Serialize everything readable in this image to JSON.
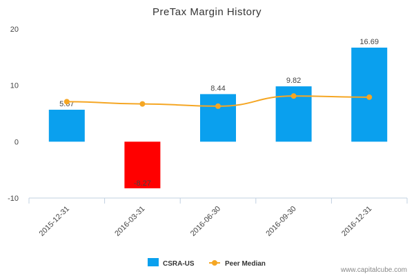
{
  "credit": "www.capitalcube.com",
  "chart_data": {
    "type": "bar",
    "title": "PreTax Margin History",
    "categories": [
      "2015-12-31",
      "2016-03-31",
      "2016-06-30",
      "2016-09-30",
      "2016-12-31"
    ],
    "ylim": [
      -10,
      20
    ],
    "yticks": [
      -10,
      0,
      10,
      20
    ],
    "series": [
      {
        "name": "CSRA-US",
        "kind": "bar",
        "values": [
          5.67,
          -8.27,
          8.44,
          9.82,
          16.69
        ],
        "labels": [
          "5.67",
          "-8.27",
          "8.44",
          "9.82",
          "16.69"
        ],
        "color": "#0aa0ee",
        "negative_color": "#ff0000"
      },
      {
        "name": "Peer Median",
        "kind": "line",
        "values": [
          7.1,
          6.7,
          6.3,
          8.1,
          7.9
        ],
        "color": "#f5a623"
      }
    ],
    "legend_position": "bottom-center",
    "grid": false
  }
}
